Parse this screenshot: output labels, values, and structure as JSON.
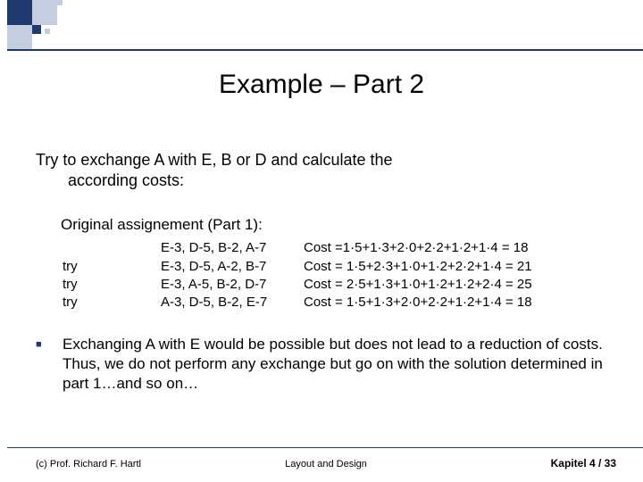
{
  "title": "Example – Part 2",
  "intro": {
    "line1": "Try to exchange A with E, B or D and calculate the",
    "line2": "according costs:"
  },
  "original_label": "Original assignement (Part 1):",
  "rows": [
    {
      "try": "",
      "seq": "E-3, D-5, B-2, A-7",
      "cost": "Cost =1·5+1·3+2·0+2·2+1·2+1·4 = 18"
    },
    {
      "try": "try",
      "seq": "E-3, D-5, A-2, B-7",
      "cost": "Cost = 1·5+2·3+1·0+1·2+2·2+1·4 = 21"
    },
    {
      "try": "try",
      "seq": "E-3, A-5, B-2, D-7",
      "cost": "Cost = 2·5+1·3+1·0+1·2+1·2+2·4 = 25"
    },
    {
      "try": "try",
      "seq": "A-3, D-5, B-2, E-7",
      "cost": "Cost = 1·5+1·3+2·0+2·2+1·2+1·4 = 18"
    }
  ],
  "conclusion": "Exchanging A with E would be possible but does not lead to a reduction of costs. Thus, we do not perform any exchange but go on with the solution determined in part 1…and so on…",
  "footer": {
    "left": "(c) Prof. Richard F. Hartl",
    "center": "Layout and Design",
    "right": "Kapitel 4 / 33"
  },
  "colors": {
    "accent": "#1f3a6e",
    "light": "#c5cde0",
    "background": "#ffffff",
    "text": "#000000"
  }
}
